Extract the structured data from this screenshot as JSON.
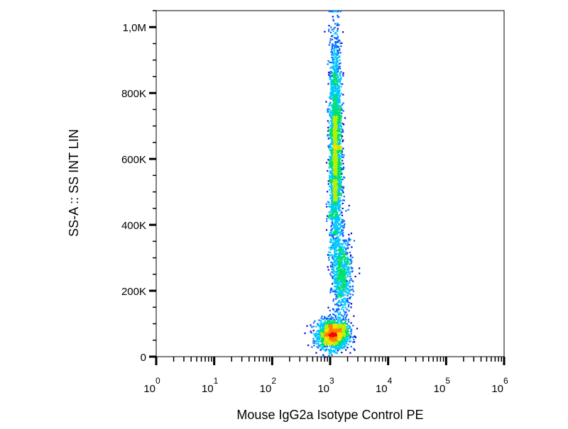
{
  "chart_data": {
    "type": "scatter",
    "subtype": "flow-cytometry-density-dot-plot",
    "title": "",
    "xlabel": "Mouse IgG2a Isotype Control PE",
    "ylabel": "SS-A :: SS INT LIN",
    "x_scale": "log",
    "x_range": [
      1,
      1000000
    ],
    "x_ticks": [
      {
        "value": 1,
        "base": "10",
        "exp": "0"
      },
      {
        "value": 10,
        "base": "10",
        "exp": "1"
      },
      {
        "value": 100,
        "base": "10",
        "exp": "2"
      },
      {
        "value": 1000,
        "base": "10",
        "exp": "3"
      },
      {
        "value": 10000,
        "base": "10",
        "exp": "4"
      },
      {
        "value": 100000,
        "base": "10",
        "exp": "5"
      },
      {
        "value": 1000000,
        "base": "10",
        "exp": "6"
      }
    ],
    "y_scale": "linear",
    "y_range": [
      0,
      1050000
    ],
    "y_ticks": [
      {
        "value": 0,
        "label": "0"
      },
      {
        "value": 200000,
        "label": "200K"
      },
      {
        "value": 400000,
        "label": "400K"
      },
      {
        "value": 600000,
        "label": "600K"
      },
      {
        "value": 800000,
        "label": "800K"
      },
      {
        "value": 1000000,
        "label": "1,0M"
      }
    ],
    "grid": false,
    "legend": "none",
    "color_scale": [
      "#0000cc",
      "#0066ff",
      "#00c8ff",
      "#00e070",
      "#b8f000",
      "#ffe000",
      "#ff8000",
      "#ff0000"
    ],
    "populations": [
      {
        "x_center": 1100,
        "y_center": 70000,
        "x_spread_decades": 0.13,
        "y_spread": 22000,
        "count": 1800
      },
      {
        "x_center": 1200,
        "y_center": 620000,
        "x_spread_decades": 0.055,
        "y_spread": 175000,
        "count": 2600
      },
      {
        "x_center": 1600,
        "y_center": 250000,
        "x_spread_decades": 0.08,
        "y_spread": 60000,
        "count": 700
      }
    ]
  }
}
